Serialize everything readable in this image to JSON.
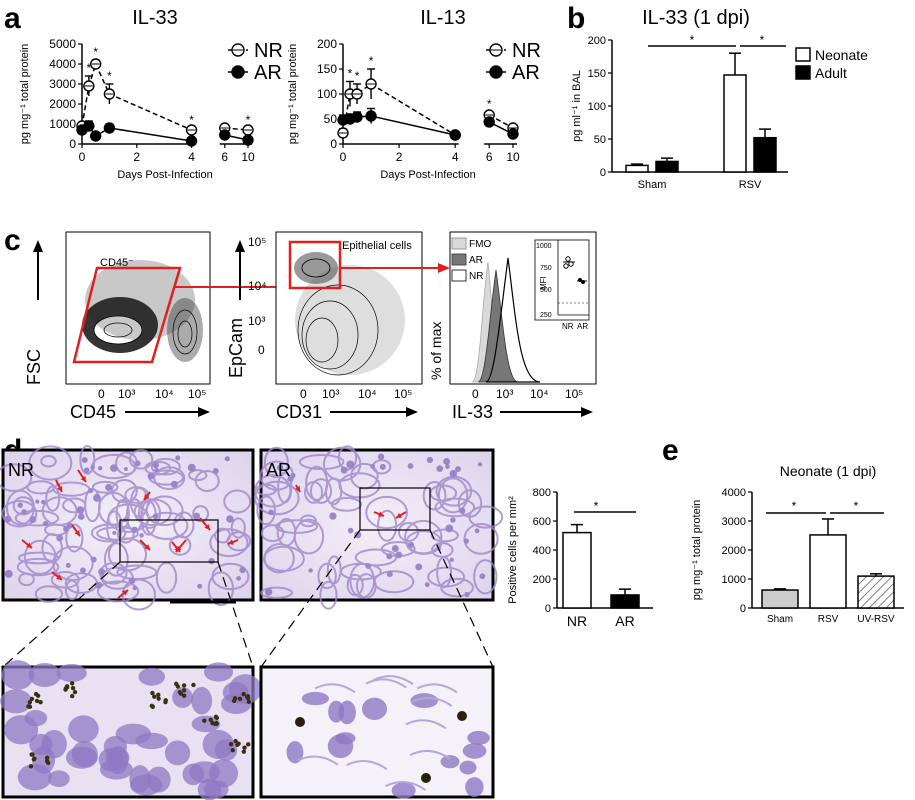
{
  "panel_labels": [
    "a",
    "b",
    "c",
    "d",
    "e"
  ],
  "chart_data": [
    {
      "id": "a-il33",
      "type": "line",
      "title": "IL-33",
      "xlabel": "Days Post-Infection",
      "ylabel": "pg mg⁻¹ total protein",
      "xlim": [
        0,
        10
      ],
      "ylim": [
        0,
        5000
      ],
      "yticks": [
        "0",
        "1000",
        "2000",
        "3000",
        "4000",
        "5000"
      ],
      "xticks": [
        "0",
        "2",
        "4",
        "6",
        "10"
      ],
      "legend": [
        "NR",
        "AR"
      ],
      "legend_position": "top-right",
      "series": [
        {
          "name": "NR",
          "x": [
            0,
            0.25,
            0.5,
            1,
            4,
            6,
            10
          ],
          "y": [
            900,
            2900,
            4000,
            2500,
            700,
            800,
            700
          ],
          "err": [
            150,
            500,
            200,
            500,
            100,
            100,
            100
          ],
          "style": "dashed-open"
        },
        {
          "name": "AR",
          "x": [
            0,
            0.25,
            0.5,
            1,
            4,
            6,
            10
          ],
          "y": [
            700,
            900,
            400,
            800,
            150,
            450,
            200
          ],
          "err": [
            100,
            250,
            80,
            200,
            50,
            100,
            50
          ],
          "style": "solid-filled"
        }
      ],
      "significance_x": [
        0.25,
        0.5,
        1,
        4,
        10
      ],
      "significance_mark": "*"
    },
    {
      "id": "a-il13",
      "type": "line",
      "title": "IL-13",
      "xlabel": "Days Post-Infection",
      "ylabel": "pg mg⁻¹ total protein",
      "xlim": [
        0,
        10
      ],
      "ylim": [
        0,
        200
      ],
      "yticks": [
        "0",
        "50",
        "100",
        "150",
        "200"
      ],
      "xticks": [
        "0",
        "2",
        "4",
        "6",
        "10"
      ],
      "legend": [
        "NR",
        "AR"
      ],
      "legend_position": "top-right",
      "series": [
        {
          "name": "NR",
          "x": [
            0,
            0.25,
            0.5,
            1,
            4,
            6,
            10
          ],
          "y": [
            22,
            100,
            100,
            120,
            18,
            58,
            32
          ],
          "err": [
            8,
            25,
            20,
            30,
            3,
            6,
            4
          ],
          "style": "dashed-open"
        },
        {
          "name": "AR",
          "x": [
            0,
            0.25,
            0.5,
            1,
            4,
            6,
            10
          ],
          "y": [
            48,
            50,
            54,
            56,
            18,
            44,
            20
          ],
          "err": [
            10,
            10,
            10,
            15,
            3,
            6,
            3
          ],
          "style": "solid-filled"
        }
      ],
      "significance_x": [
        0.25,
        0.5,
        1,
        6
      ],
      "significance_mark": "*"
    },
    {
      "id": "b",
      "type": "bar",
      "title": "IL-33 (1 dpi)",
      "ylabel": "pg ml⁻¹ in BAL",
      "categories": [
        "Sham",
        "RSV"
      ],
      "ylim": [
        0,
        200
      ],
      "yticks": [
        "0",
        "50",
        "100",
        "150",
        "200"
      ],
      "legend": [
        "Neonate",
        "Adult"
      ],
      "legend_position": "top-right",
      "series": [
        {
          "name": "Neonate",
          "values": [
            10,
            147
          ],
          "err": [
            2,
            33
          ],
          "fill": "#ffffff"
        },
        {
          "name": "Adult",
          "values": [
            16,
            52
          ],
          "err": [
            5,
            13
          ],
          "fill": "#000000"
        }
      ],
      "significance_mark": "*"
    },
    {
      "id": "d",
      "type": "bar",
      "ylabel": "Positive cells per mm²",
      "categories": [
        "NR",
        "AR"
      ],
      "values": [
        520,
        90
      ],
      "err": [
        55,
        40
      ],
      "fills": [
        "#ffffff",
        "#000000"
      ],
      "ylim": [
        0,
        800
      ],
      "yticks": [
        "0",
        "200",
        "400",
        "600",
        "800"
      ],
      "significance_mark": "*"
    },
    {
      "id": "e",
      "type": "bar",
      "title": "Neonate (1 dpi)",
      "ylabel": "pg mg⁻¹ total protein",
      "categories": [
        "Sham",
        "RSV",
        "UV-RSV"
      ],
      "values": [
        620,
        2520,
        1100
      ],
      "err": [
        40,
        550,
        80
      ],
      "fills": [
        "#cccccc",
        "#ffffff",
        "hatch"
      ],
      "ylim": [
        0,
        4000
      ],
      "yticks": [
        "0",
        "1000",
        "2000",
        "3000",
        "4000"
      ],
      "significance_mark": "*"
    }
  ],
  "flow": {
    "plot1": {
      "ylabel": "FSC",
      "xlabel": "CD45",
      "gate_label": "CD45⁻",
      "xticks": [
        "0",
        "10³",
        "10⁴",
        "10⁵"
      ]
    },
    "plot2": {
      "ylabel": "EpCam",
      "xlabel": "CD31",
      "gate_label": "Epithelial cells",
      "yticks": [
        "10⁵",
        "10⁴",
        "10³",
        "0"
      ],
      "xticks": [
        "0",
        "10³",
        "10⁴",
        "10⁵"
      ]
    },
    "plot3": {
      "ylabel": "% of max",
      "xlabel": "IL-33",
      "legend": [
        "FMO",
        "AR",
        "NR"
      ],
      "xticks": [
        "0",
        "10³",
        "10⁴",
        "10⁵"
      ],
      "inset": {
        "ylabel": "MFI",
        "yticks": [
          "1000",
          "750",
          "500",
          "250"
        ],
        "categories": [
          "NR",
          "AR"
        ]
      }
    }
  },
  "micrographs": {
    "left_label": "NR",
    "right_label": "AR"
  },
  "colors": {
    "gate": "#e02020",
    "tissue": "#b9a9d6",
    "arrow": "#e02020"
  }
}
